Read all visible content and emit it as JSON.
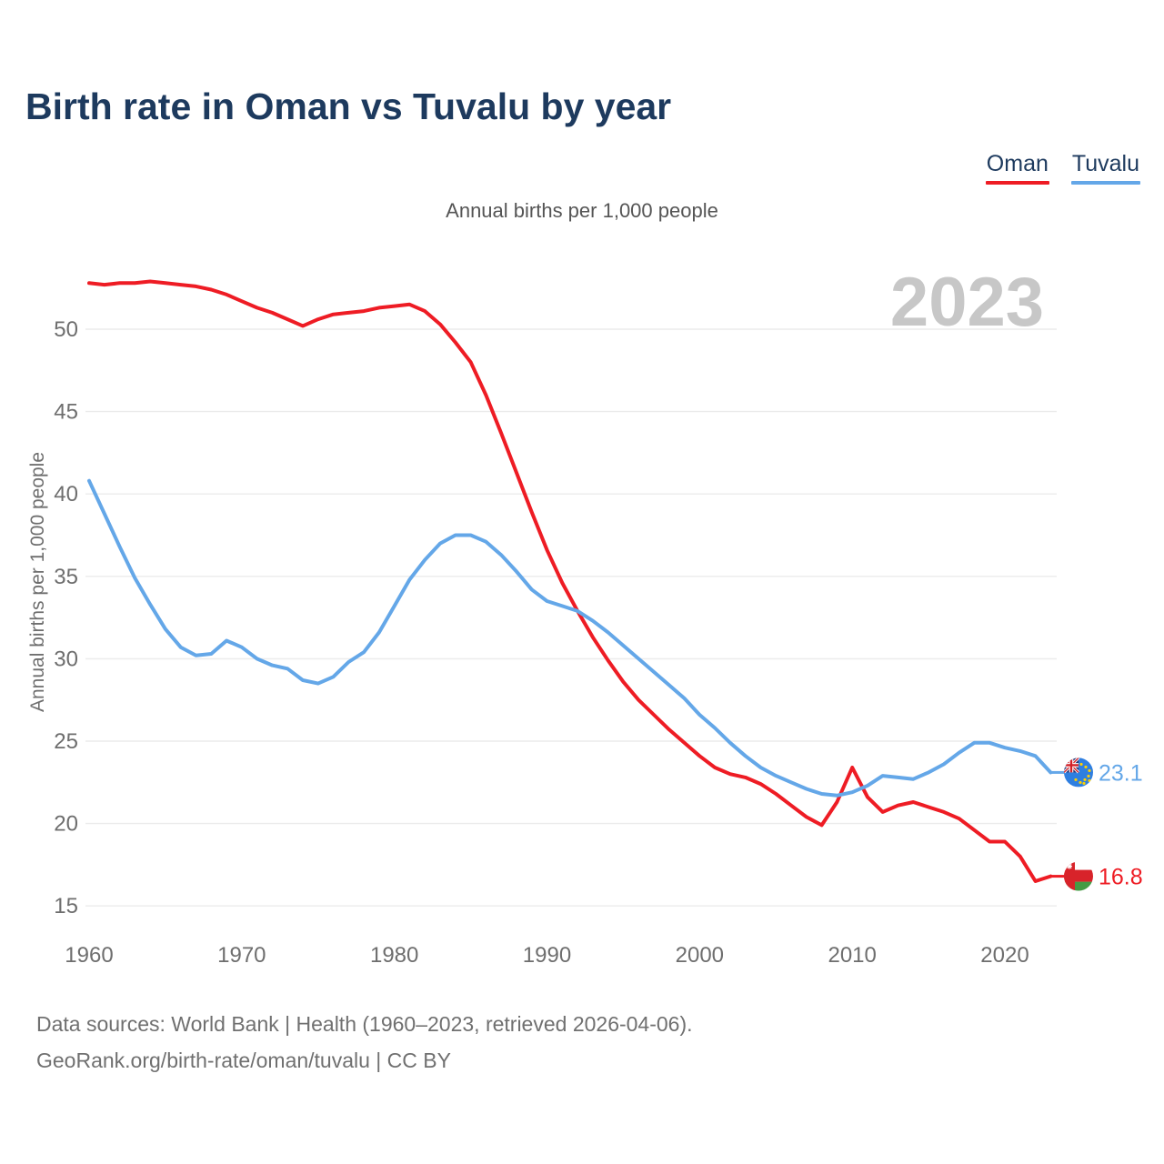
{
  "page": {
    "title": "Birth rate in Oman vs Tuvalu by year",
    "subtitle": "Annual births per 1,000 people",
    "watermark": "2023",
    "footer_line1": "Data sources: World Bank | Health (1960–2023, retrieved 2026-04-06).",
    "footer_line2": "GeoRank.org/birth-rate/oman/tuvalu | CC BY"
  },
  "legend": [
    {
      "label": "Oman",
      "color": "#ee1c24"
    },
    {
      "label": "Tuvalu",
      "color": "#64a7e8"
    }
  ],
  "chart_data": {
    "type": "line",
    "title": "Birth rate in Oman vs Tuvalu by year",
    "subtitle": "Annual births per 1,000 people",
    "ylabel": "Annual births per 1,000 people",
    "xlabel": "",
    "grid": true,
    "legend_position": "top-right",
    "watermark": "2023",
    "ylim": [
      13.5,
      54
    ],
    "y_ticks": [
      15,
      20,
      25,
      30,
      35,
      40,
      45,
      50
    ],
    "x_ticks": [
      1960,
      1970,
      1980,
      1990,
      2000,
      2010,
      2020
    ],
    "x": [
      1960,
      1961,
      1962,
      1963,
      1964,
      1965,
      1966,
      1967,
      1968,
      1969,
      1970,
      1971,
      1972,
      1973,
      1974,
      1975,
      1976,
      1977,
      1978,
      1979,
      1980,
      1981,
      1982,
      1983,
      1984,
      1985,
      1986,
      1987,
      1988,
      1989,
      1990,
      1991,
      1992,
      1993,
      1994,
      1995,
      1996,
      1997,
      1998,
      1999,
      2000,
      2001,
      2002,
      2003,
      2004,
      2005,
      2006,
      2007,
      2008,
      2009,
      2010,
      2011,
      2012,
      2013,
      2014,
      2015,
      2016,
      2017,
      2018,
      2019,
      2020,
      2021,
      2022,
      2023
    ],
    "series": [
      {
        "name": "Oman",
        "color": "#ee1c24",
        "end_label": "16.8",
        "flag": "oman",
        "values": [
          52.8,
          52.7,
          52.8,
          52.8,
          52.9,
          52.8,
          52.7,
          52.6,
          52.4,
          52.1,
          51.7,
          51.3,
          51.0,
          50.6,
          50.2,
          50.6,
          50.9,
          51.0,
          51.1,
          51.3,
          51.4,
          51.5,
          51.1,
          50.3,
          49.2,
          48.0,
          46.0,
          43.7,
          41.3,
          38.9,
          36.6,
          34.6,
          32.9,
          31.3,
          29.9,
          28.6,
          27.5,
          26.6,
          25.7,
          24.9,
          24.1,
          23.4,
          23.0,
          22.8,
          22.4,
          21.8,
          21.1,
          20.4,
          19.9,
          21.3,
          23.4,
          21.6,
          20.7,
          21.1,
          21.3,
          21.0,
          20.7,
          20.3,
          19.6,
          18.9,
          18.9,
          18.0,
          16.5,
          16.8
        ]
      },
      {
        "name": "Tuvalu",
        "color": "#64a7e8",
        "end_label": "23.1",
        "flag": "tuvalu",
        "values": [
          40.8,
          38.8,
          36.8,
          34.9,
          33.3,
          31.8,
          30.7,
          30.2,
          30.3,
          31.1,
          30.7,
          30.0,
          29.6,
          29.4,
          28.7,
          28.5,
          28.9,
          29.8,
          30.4,
          31.6,
          33.2,
          34.8,
          36.0,
          37.0,
          37.5,
          37.5,
          37.1,
          36.3,
          35.3,
          34.2,
          33.5,
          33.2,
          32.9,
          32.3,
          31.6,
          30.8,
          30.0,
          29.2,
          28.4,
          27.6,
          26.6,
          25.8,
          24.9,
          24.1,
          23.4,
          22.9,
          22.5,
          22.1,
          21.8,
          21.7,
          21.9,
          22.3,
          22.9,
          22.8,
          22.7,
          23.1,
          23.6,
          24.3,
          24.9,
          24.9,
          24.6,
          24.4,
          24.1,
          23.1
        ]
      }
    ]
  },
  "style": {
    "grid_color": "#ebebeb",
    "tick_color": "#6e6e6e",
    "watermark_color": "#c7c7c7"
  }
}
